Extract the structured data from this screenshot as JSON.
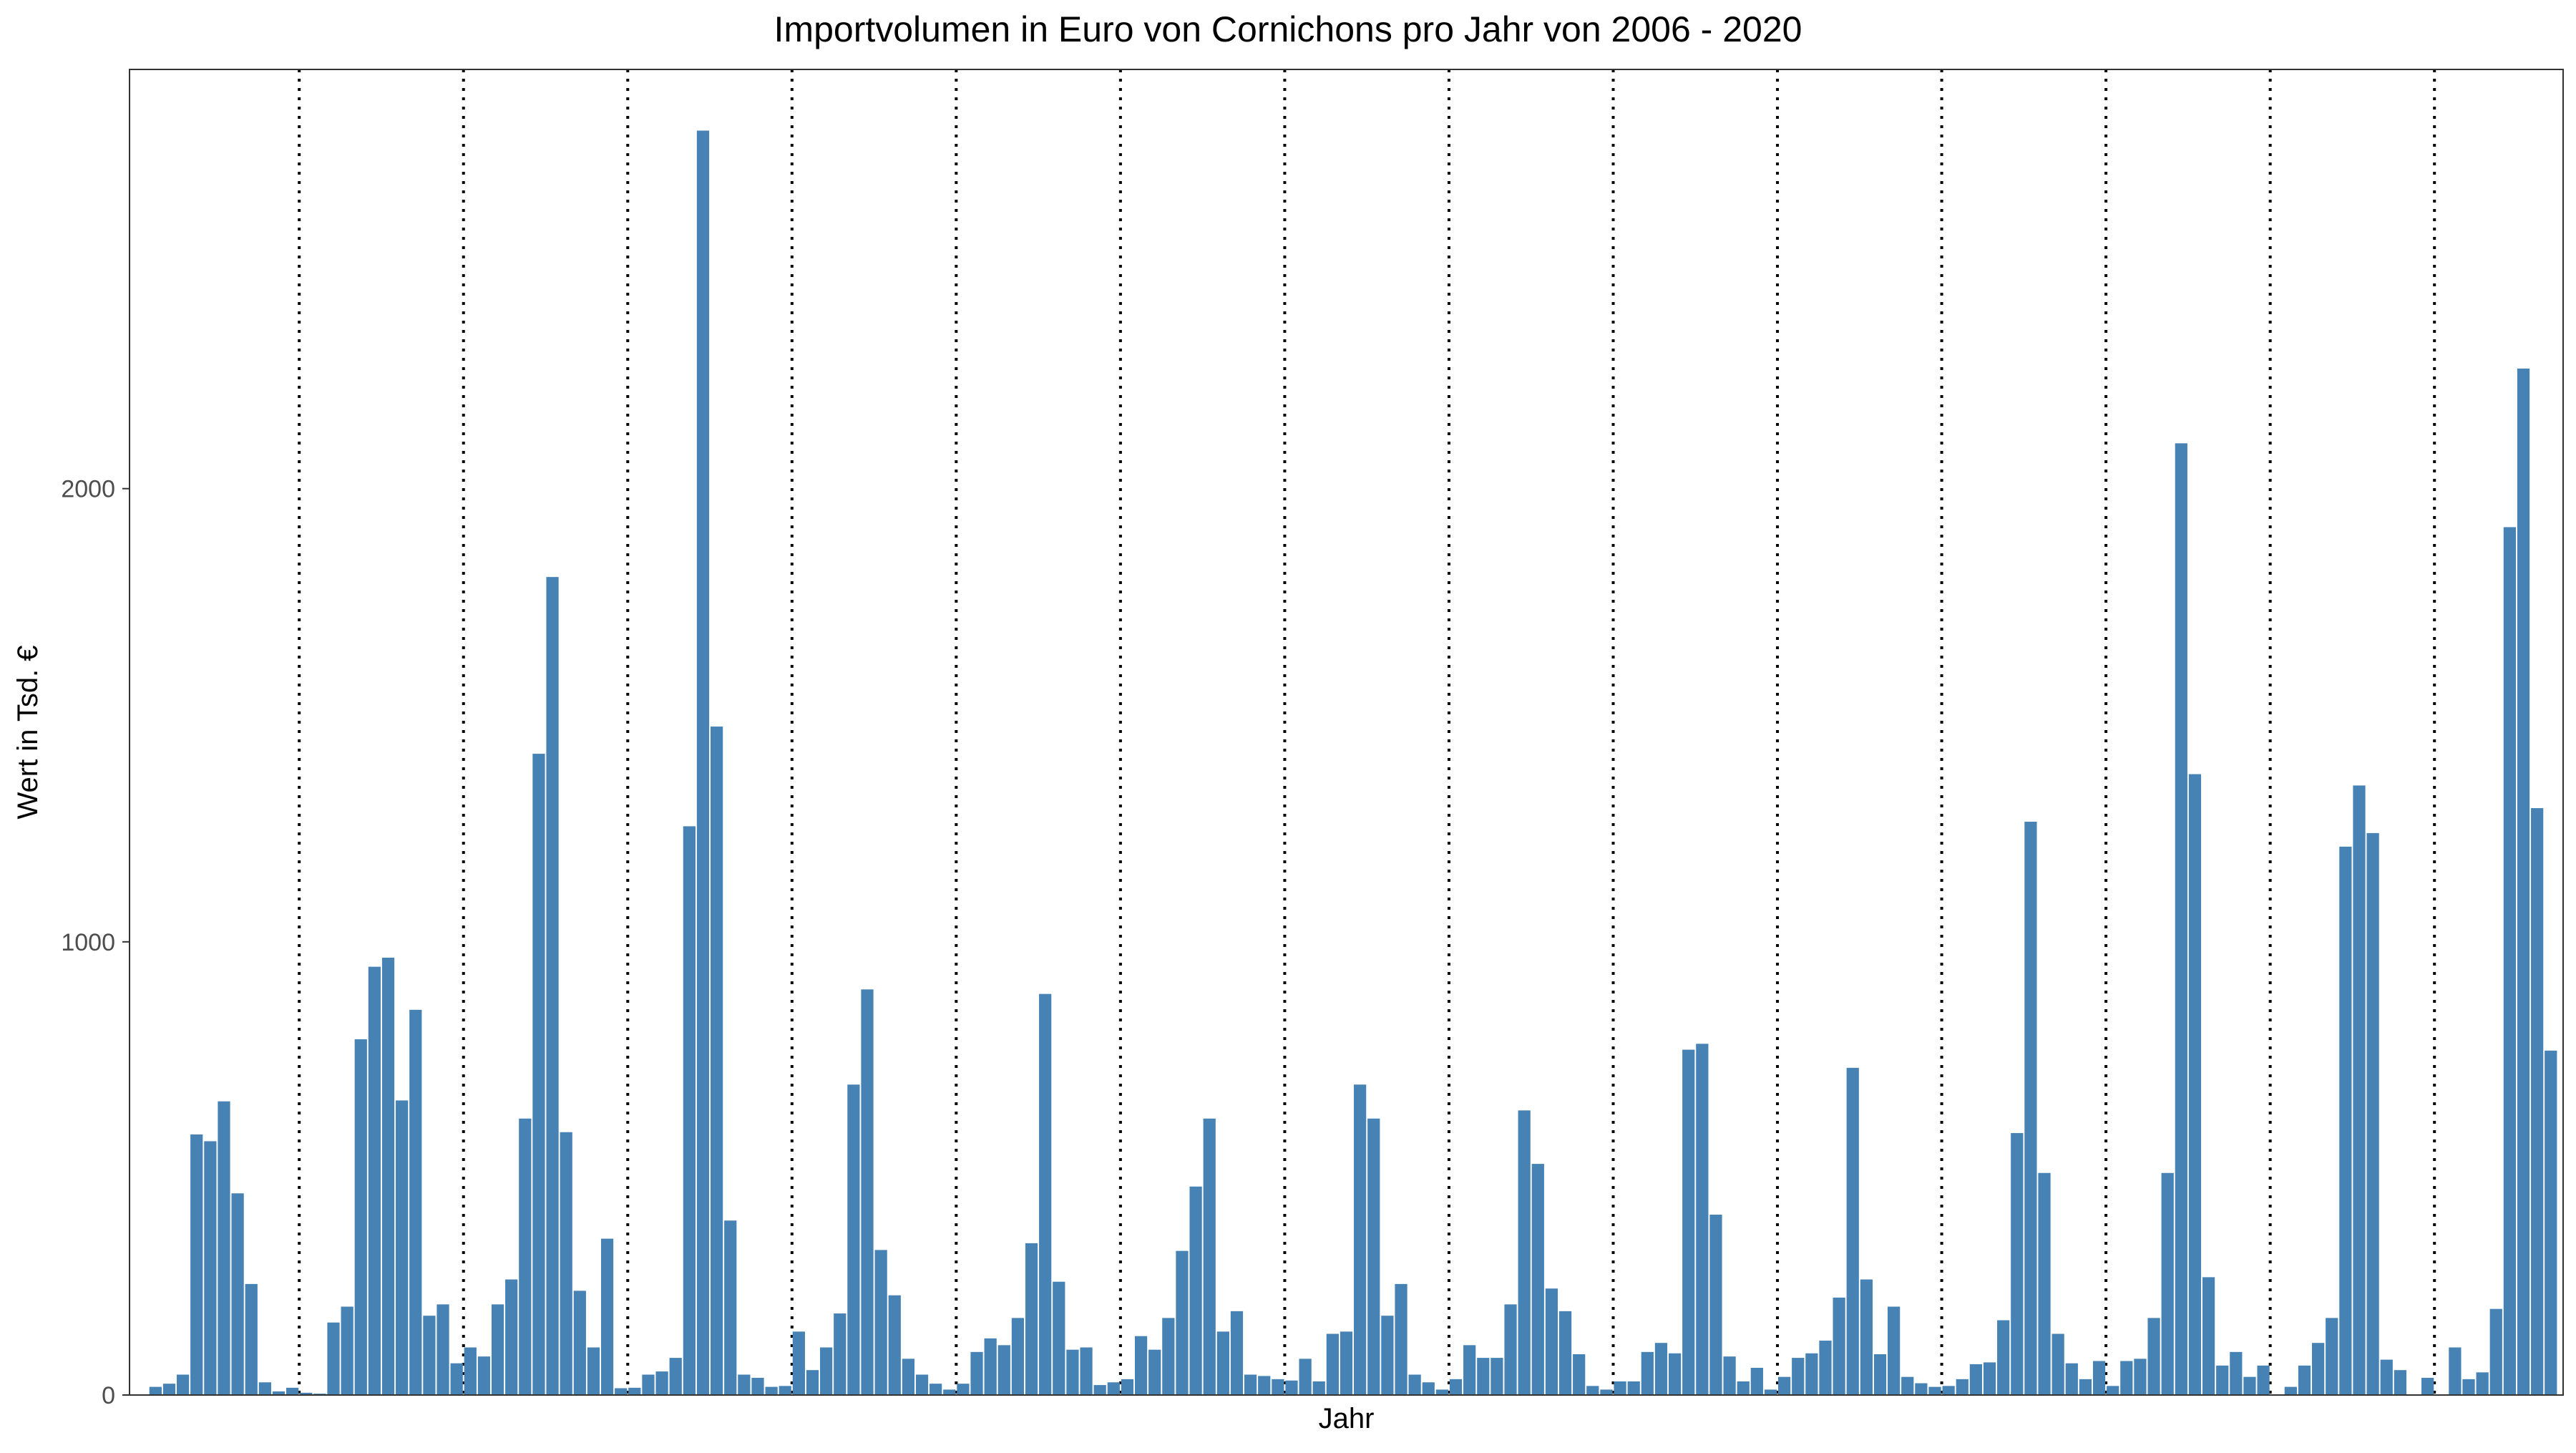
{
  "chart_data": {
    "type": "bar",
    "title": "Importvolumen in Euro von Cornichons pro Jahr von 2006 - 2020",
    "xlabel": "Jahr",
    "ylabel": "Wert in Tsd. €",
    "ylim": [
      0,
      2925
    ],
    "yticks": [
      0,
      1000,
      2000
    ],
    "xticks": [],
    "grid": false,
    "legend": "none",
    "bar_color": "#4682B4",
    "separator_style": "dotted",
    "separators_after_bar": [
      12,
      24,
      36,
      48,
      60,
      72,
      84,
      96,
      108,
      120,
      132,
      144,
      156,
      168
    ],
    "values": [
      0,
      18,
      25,
      45,
      575,
      560,
      648,
      445,
      245,
      28,
      8,
      16,
      5,
      3,
      160,
      195,
      785,
      945,
      965,
      650,
      850,
      175,
      200,
      70,
      105,
      85,
      200,
      255,
      610,
      1415,
      1805,
      580,
      230,
      105,
      345,
      15,
      16,
      45,
      52,
      82,
      1255,
      2790,
      1475,
      385,
      45,
      38,
      18,
      20,
      140,
      55,
      105,
      180,
      685,
      895,
      320,
      220,
      80,
      45,
      25,
      12,
      25,
      95,
      125,
      110,
      170,
      335,
      885,
      250,
      100,
      105,
      22,
      28,
      35,
      130,
      100,
      170,
      318,
      460,
      610,
      140,
      185,
      45,
      42,
      35,
      32,
      80,
      30,
      135,
      140,
      685,
      610,
      175,
      245,
      45,
      28,
      12,
      35,
      110,
      82,
      82,
      200,
      628,
      510,
      235,
      185,
      90,
      20,
      12,
      30,
      30,
      95,
      115,
      92,
      762,
      775,
      398,
      85,
      30,
      60,
      12,
      40,
      82,
      92,
      120,
      215,
      722,
      255,
      90,
      195,
      40,
      26,
      18,
      20,
      35,
      68,
      72,
      165,
      578,
      1265,
      490,
      135,
      70,
      35,
      75,
      20,
      75,
      80,
      170,
      490,
      2100,
      1370,
      260,
      65,
      95,
      40,
      65,
      0,
      18,
      65,
      115,
      170,
      1210,
      1345,
      1240,
      78,
      55,
      0,
      38,
      0,
      105,
      35,
      50,
      190,
      1915,
      2265,
      1295,
      760
    ]
  }
}
